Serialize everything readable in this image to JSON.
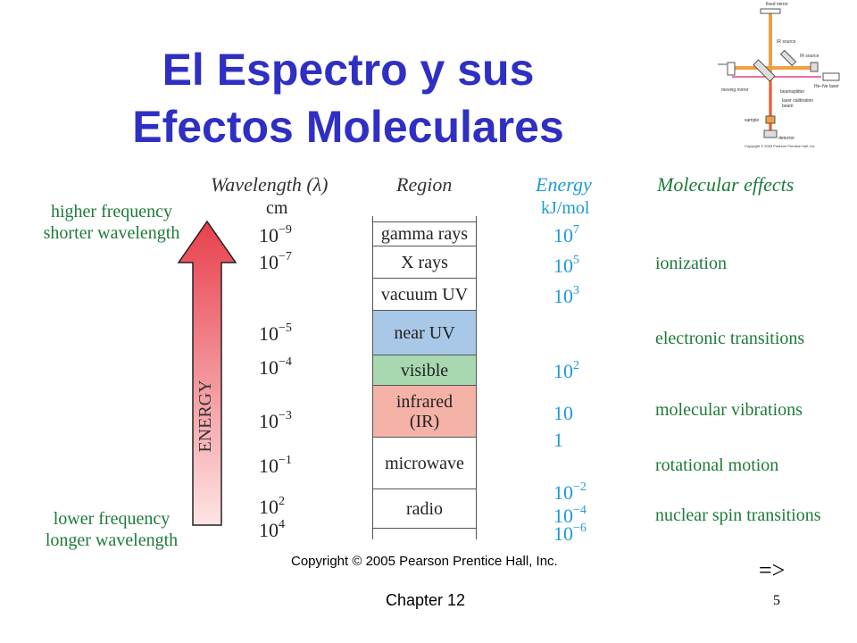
{
  "title_line1": "El Espectro y sus",
  "title_line2": "Efectos Moleculares",
  "headers": {
    "wavelength": "Wavelength (λ)",
    "region": "Region",
    "energy": "Energy",
    "molecular": "Molecular effects"
  },
  "units": {
    "wavelength": "cm",
    "energy": "kJ/mol"
  },
  "frequency_labels": {
    "top1": "higher frequency",
    "top2": "shorter wavelength",
    "bottom1": "lower frequency",
    "bottom2": "longer wavelength"
  },
  "arrow_label": "ENERGY",
  "wavelengths": [
    {
      "base": "10",
      "exp": "−9"
    },
    {
      "base": "10",
      "exp": "−7"
    },
    {
      "base": "10",
      "exp": "−5"
    },
    {
      "base": "10",
      "exp": "−4"
    },
    {
      "base": "10",
      "exp": "−3"
    },
    {
      "base": "10",
      "exp": "−1"
    },
    {
      "base": "10",
      "exp": "2"
    },
    {
      "base": "10",
      "exp": "4"
    }
  ],
  "regions": [
    {
      "label": "gamma rays",
      "color": "#ffffff"
    },
    {
      "label": "X rays",
      "color": "#ffffff"
    },
    {
      "label": "vacuum UV",
      "color": "#ffffff"
    },
    {
      "label": "near UV",
      "color": "#a9c8e8"
    },
    {
      "label": "visible",
      "color": "#a8d8b0"
    },
    {
      "label": "infrared",
      "label2": "(IR)",
      "color": "#f5b3a8"
    },
    {
      "label": "microwave",
      "color": "#ffffff"
    },
    {
      "label": "radio",
      "color": "#ffffff"
    }
  ],
  "energies": [
    {
      "base": "10",
      "exp": "7"
    },
    {
      "base": "10",
      "exp": "5"
    },
    {
      "base": "10",
      "exp": "3"
    },
    {
      "base": "10",
      "exp": "2"
    },
    {
      "base": "10",
      "exp": ""
    },
    {
      "base": "1",
      "exp": ""
    },
    {
      "base": "10",
      "exp": "−2"
    },
    {
      "base": "10",
      "exp": "−4"
    },
    {
      "base": "10",
      "exp": "−6"
    }
  ],
  "effects": [
    "ionization",
    "electronic transitions",
    "molecular vibrations",
    "rotational motion",
    "nuclear spin transitions"
  ],
  "copyright": "Copyright © 2005 Pearson Prentice Hall, Inc.",
  "next_marker": "=>",
  "footer_chapter": "Chapter 12",
  "page_number": "5",
  "inset": {
    "fixed_mirror": "fixed mirror",
    "ir_source1": "IR source",
    "ir_source2": "IR source",
    "hene_laser": "He–Ne laser",
    "moving_mirror": "moving mirror",
    "beamsplitter": "beamsplitter",
    "laser_calibration": "laser calibration",
    "beam": "beam",
    "sample": "sample",
    "detector": "detector",
    "copyright": "Copyright © 2005 Pearson Prentice Hall, Inc."
  },
  "colors": {
    "title": "#2f2fc4",
    "energy_blue": "#1f9ad6",
    "effects_green": "#1d7a3a",
    "arrow_top": "#e8404c",
    "arrow_bottom": "#fde4e4",
    "inset_beam": "#f0a040"
  }
}
